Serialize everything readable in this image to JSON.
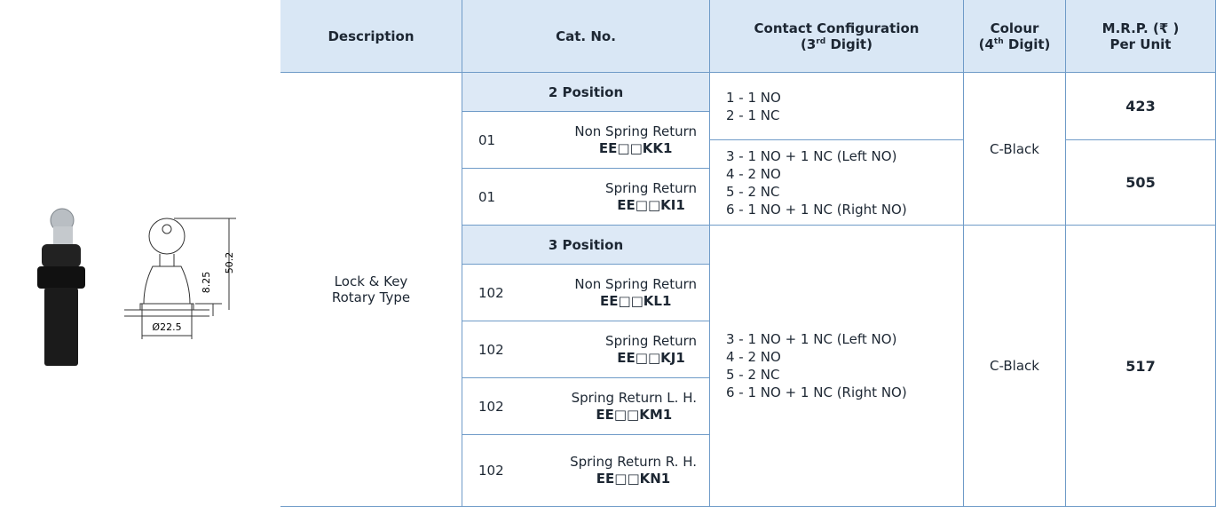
{
  "header": {
    "description": "Description",
    "cat_no": "Cat. No.",
    "contact": {
      "line1": "Contact Configuration",
      "pre": "(3",
      "sup": "rd",
      "post": " Digit)"
    },
    "colour": {
      "line1": "Colour",
      "pre": "(4",
      "sup": "th",
      "post": " Digit)"
    },
    "mrp": {
      "line1": "M.R.P. (₹ )",
      "line2": "Per Unit"
    }
  },
  "drawing": {
    "dims": [
      "50.2",
      "8.25",
      "Ø22.5"
    ]
  },
  "description": [
    "Lock & Key",
    "Rotary Type"
  ],
  "groups": [
    {
      "position": "2 Position",
      "variants": [
        {
          "name": "Non Spring Return",
          "cat_no": "EE□□KK1",
          "icon": [
            "0",
            "1"
          ]
        },
        {
          "name": "Spring Return",
          "cat_no": "EE□□KI1",
          "icon": [
            "0",
            "1"
          ]
        }
      ],
      "contacts": [
        [
          "1 - 1 NO",
          "2 - 1 NC"
        ],
        [
          "3 - 1 NO + 1 NC (Left NO)",
          "4 - 2 NO",
          "5 - 2 NC",
          "6 - 1 NO + 1 NC (Right NO)"
        ]
      ],
      "colour": "C-Black",
      "prices": [
        423,
        505
      ]
    },
    {
      "position": "3 Position",
      "variants": [
        {
          "name": "Non Spring Return",
          "cat_no": "EE□□KL1",
          "icon": [
            "1",
            "0",
            "2"
          ]
        },
        {
          "name": "Spring Return",
          "cat_no": "EE□□KJ1",
          "icon": [
            "1",
            "0",
            "2"
          ]
        },
        {
          "name": "Spring Return L. H.",
          "cat_no": "EE□□KM1",
          "icon": [
            "1",
            "0",
            "2"
          ]
        },
        {
          "name": "Spring Return R. H.",
          "cat_no": "EE□□KN1",
          "icon": [
            "1",
            "0",
            "2"
          ]
        }
      ],
      "contacts": [
        [
          "3 - 1 NO + 1 NC (Left NO)",
          "4 - 2 NO",
          "5 - 2 NC",
          "6 - 1 NO + 1 NC (Right NO)"
        ]
      ],
      "colour": "C-Black",
      "prices": [
        517
      ]
    }
  ]
}
